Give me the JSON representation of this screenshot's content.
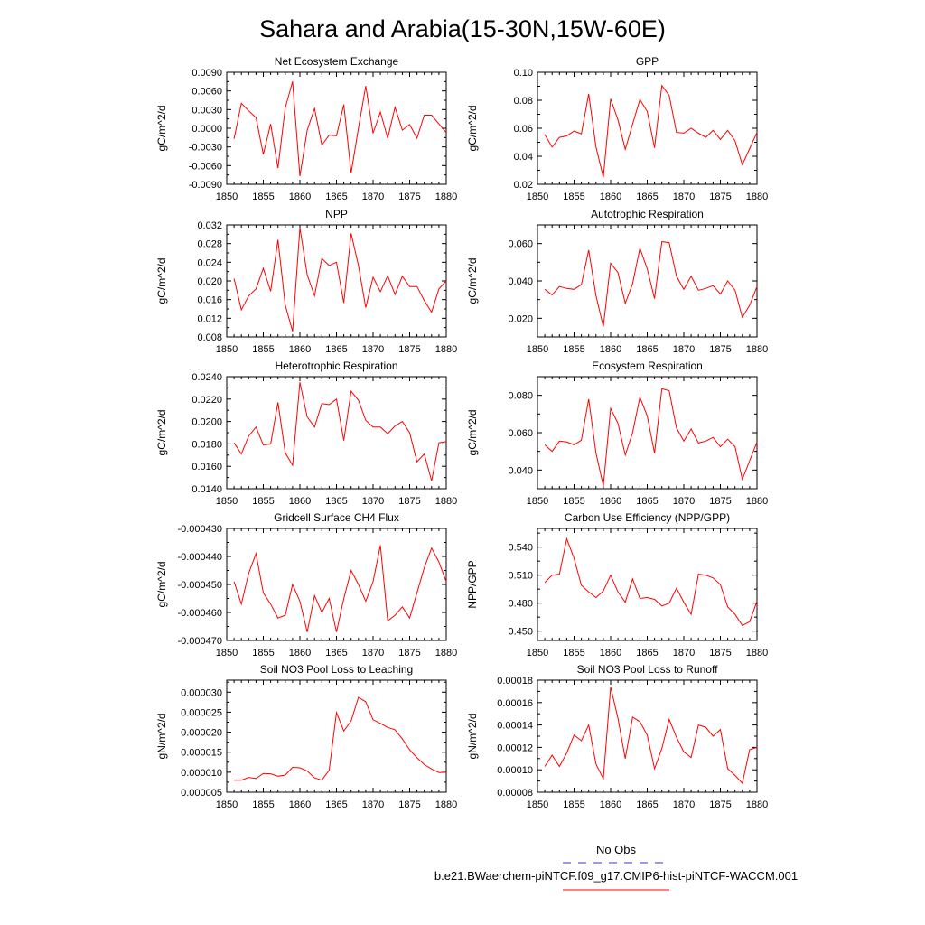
{
  "page_title": "Sahara and Arabia(15-30N,15W-60E)",
  "legend": {
    "obs_label": "No Obs",
    "obs_color": "#3333cc",
    "model_label": "b.e21.BWaerchem-piNTCF.f09_g17.CMIP6-hist-piNTCF-WACCM.001",
    "model_color": "#ff0000"
  },
  "chart_data": [
    {
      "type": "line",
      "title": "Net Ecosystem Exchange",
      "ylabel": "gC/m^2/d",
      "xlim": [
        1850,
        1880
      ],
      "ylim": [
        -0.009,
        0.009
      ],
      "xticks": [
        1850,
        1855,
        1860,
        1865,
        1870,
        1875,
        1880
      ],
      "yticks": [
        "-0.0090",
        "-0.0060",
        "-0.0030",
        "0.0000",
        "0.0030",
        "0.0060",
        "0.0090"
      ],
      "x": [
        1851,
        1852,
        1853,
        1854,
        1855,
        1856,
        1857,
        1858,
        1859,
        1860,
        1861,
        1862,
        1863,
        1864,
        1865,
        1866,
        1867,
        1868,
        1869,
        1870,
        1871,
        1872,
        1873,
        1874,
        1875,
        1876,
        1877,
        1878,
        1879,
        1880
      ],
      "series": [
        {
          "values": [
            -0.0017,
            0.004,
            0.0028,
            0.0017,
            -0.0042,
            0.0007,
            -0.0064,
            0.0033,
            0.0075,
            -0.0077,
            -0.0003,
            0.0032,
            -0.0027,
            -0.0011,
            -0.0012,
            0.0038,
            -0.0072,
            0.0,
            0.0068,
            -0.0008,
            0.0026,
            -0.0016,
            0.0034,
            -0.0003,
            0.0006,
            -0.0016,
            0.0021,
            0.0021,
            0.0007,
            -0.0007
          ]
        }
      ]
    },
    {
      "type": "line",
      "title": "GPP",
      "ylabel": "gC/m^2/d",
      "xlim": [
        1850,
        1880
      ],
      "ylim": [
        0.02,
        0.1
      ],
      "xticks": [
        1850,
        1855,
        1860,
        1865,
        1870,
        1875,
        1880
      ],
      "yticks": [
        "0.02",
        "0.04",
        "0.06",
        "0.08",
        "0.10"
      ],
      "x": [
        1851,
        1852,
        1853,
        1854,
        1855,
        1856,
        1857,
        1858,
        1859,
        1860,
        1861,
        1862,
        1863,
        1864,
        1865,
        1866,
        1867,
        1868,
        1869,
        1870,
        1871,
        1872,
        1873,
        1874,
        1875,
        1876,
        1877,
        1878,
        1879,
        1880
      ],
      "series": [
        {
          "values": [
            0.0555,
            0.0465,
            0.0535,
            0.0545,
            0.058,
            0.056,
            0.0845,
            0.0465,
            0.025,
            0.081,
            0.066,
            0.045,
            0.063,
            0.0805,
            0.072,
            0.046,
            0.0905,
            0.0835,
            0.057,
            0.0565,
            0.06,
            0.0565,
            0.0535,
            0.0585,
            0.052,
            0.0585,
            0.051,
            0.034,
            0.0455,
            0.057
          ]
        }
      ]
    },
    {
      "type": "line",
      "title": "NPP",
      "ylabel": "gC/m^2/d",
      "xlim": [
        1850,
        1880
      ],
      "ylim": [
        0.008,
        0.032
      ],
      "xticks": [
        1850,
        1855,
        1860,
        1865,
        1870,
        1875,
        1880
      ],
      "yticks": [
        "0.008",
        "0.012",
        "0.016",
        "0.020",
        "0.024",
        "0.028",
        "0.032"
      ],
      "x": [
        1851,
        1852,
        1853,
        1854,
        1855,
        1856,
        1857,
        1858,
        1859,
        1860,
        1861,
        1862,
        1863,
        1864,
        1865,
        1866,
        1867,
        1868,
        1869,
        1870,
        1871,
        1872,
        1873,
        1874,
        1875,
        1876,
        1877,
        1878,
        1879,
        1880
      ],
      "series": [
        {
          "values": [
            0.0205,
            0.0138,
            0.0168,
            0.0183,
            0.0227,
            0.0178,
            0.0288,
            0.0148,
            0.0092,
            0.0314,
            0.0213,
            0.0168,
            0.0248,
            0.0233,
            0.024,
            0.0153,
            0.0302,
            0.0233,
            0.0143,
            0.0208,
            0.0177,
            0.0211,
            0.0171,
            0.021,
            0.0188,
            0.0188,
            0.0158,
            0.0133,
            0.0183,
            0.02
          ]
        }
      ]
    },
    {
      "type": "line",
      "title": "Autotrophic Respiration",
      "ylabel": "gC/m^2/d",
      "xlim": [
        1850,
        1880
      ],
      "ylim": [
        0.01,
        0.07
      ],
      "xticks": [
        1850,
        1855,
        1860,
        1865,
        1870,
        1875,
        1880
      ],
      "yticks": [
        "0.020",
        "0.040",
        "0.060"
      ],
      "x": [
        1851,
        1852,
        1853,
        1854,
        1855,
        1856,
        1857,
        1858,
        1859,
        1860,
        1861,
        1862,
        1863,
        1864,
        1865,
        1866,
        1867,
        1868,
        1869,
        1870,
        1871,
        1872,
        1873,
        1874,
        1875,
        1876,
        1877,
        1878,
        1879,
        1880
      ],
      "series": [
        {
          "values": [
            0.0355,
            0.0325,
            0.037,
            0.036,
            0.0355,
            0.038,
            0.0565,
            0.032,
            0.0155,
            0.0495,
            0.0445,
            0.028,
            0.0385,
            0.0575,
            0.0465,
            0.0305,
            0.061,
            0.0605,
            0.0425,
            0.0355,
            0.0425,
            0.035,
            0.036,
            0.0375,
            0.033,
            0.04,
            0.035,
            0.0205,
            0.027,
            0.037
          ]
        }
      ]
    },
    {
      "type": "line",
      "title": "Heterotrophic Respiration",
      "ylabel": "gC/m^2/d",
      "xlim": [
        1850,
        1880
      ],
      "ylim": [
        0.014,
        0.024
      ],
      "xticks": [
        1850,
        1855,
        1860,
        1865,
        1870,
        1875,
        1880
      ],
      "yticks": [
        "0.0140",
        "0.0160",
        "0.0180",
        "0.0200",
        "0.0220",
        "0.0240"
      ],
      "x": [
        1851,
        1852,
        1853,
        1854,
        1855,
        1856,
        1857,
        1858,
        1859,
        1860,
        1861,
        1862,
        1863,
        1864,
        1865,
        1866,
        1867,
        1868,
        1869,
        1870,
        1871,
        1872,
        1873,
        1874,
        1875,
        1876,
        1877,
        1878,
        1879,
        1880
      ],
      "series": [
        {
          "values": [
            0.0181,
            0.0171,
            0.0187,
            0.0195,
            0.0179,
            0.018,
            0.0217,
            0.0172,
            0.0161,
            0.0235,
            0.0204,
            0.0195,
            0.0216,
            0.0215,
            0.022,
            0.0183,
            0.0227,
            0.0219,
            0.0201,
            0.0195,
            0.0195,
            0.0189,
            0.0196,
            0.02,
            0.019,
            0.0164,
            0.0171,
            0.0147,
            0.0181,
            0.0182
          ]
        }
      ]
    },
    {
      "type": "line",
      "title": "Ecosystem Respiration",
      "ylabel": "gC/m^2/d",
      "xlim": [
        1850,
        1880
      ],
      "ylim": [
        0.03,
        0.09
      ],
      "xticks": [
        1850,
        1855,
        1860,
        1865,
        1870,
        1875,
        1880
      ],
      "yticks": [
        "0.040",
        "0.060",
        "0.080"
      ],
      "x": [
        1851,
        1852,
        1853,
        1854,
        1855,
        1856,
        1857,
        1858,
        1859,
        1860,
        1861,
        1862,
        1863,
        1864,
        1865,
        1866,
        1867,
        1868,
        1869,
        1870,
        1871,
        1872,
        1873,
        1874,
        1875,
        1876,
        1877,
        1878,
        1879,
        1880
      ],
      "series": [
        {
          "values": [
            0.0535,
            0.05,
            0.0555,
            0.055,
            0.0535,
            0.056,
            0.078,
            0.049,
            0.0315,
            0.073,
            0.065,
            0.048,
            0.06,
            0.079,
            0.069,
            0.049,
            0.0835,
            0.0825,
            0.0625,
            0.0555,
            0.062,
            0.0545,
            0.0555,
            0.0575,
            0.0525,
            0.0565,
            0.0525,
            0.035,
            0.045,
            0.055
          ]
        }
      ]
    },
    {
      "type": "line",
      "title": "Gridcell Surface CH4 Flux",
      "ylabel": "gC/m^2/d",
      "xlim": [
        1850,
        1880
      ],
      "ylim": [
        -0.00047,
        -0.00043
      ],
      "xticks": [
        1850,
        1855,
        1860,
        1865,
        1870,
        1875,
        1880
      ],
      "yticks": [
        "-0.000470",
        "-0.000460",
        "-0.000450",
        "-0.000440",
        "-0.000430"
      ],
      "x": [
        1851,
        1852,
        1853,
        1854,
        1855,
        1856,
        1857,
        1858,
        1859,
        1860,
        1861,
        1862,
        1863,
        1864,
        1865,
        1866,
        1867,
        1868,
        1869,
        1870,
        1871,
        1872,
        1873,
        1874,
        1875,
        1876,
        1877,
        1878,
        1879,
        1880
      ],
      "series": [
        {
          "values": [
            -0.000449,
            -0.000457,
            -0.000446,
            -0.000439,
            -0.000453,
            -0.000457,
            -0.000462,
            -0.000461,
            -0.00045,
            -0.000456,
            -0.000467,
            -0.000454,
            -0.00046,
            -0.000455,
            -0.000467,
            -0.000455,
            -0.000445,
            -0.00045,
            -0.000456,
            -0.000449,
            -0.000436,
            -0.000463,
            -0.000461,
            -0.000458,
            -0.000462,
            -0.000453,
            -0.000444,
            -0.000437,
            -0.000442,
            -0.000449
          ]
        }
      ]
    },
    {
      "type": "line",
      "title": "Carbon Use Efficiency (NPP/GPP)",
      "ylabel": "NPP/GPP",
      "xlim": [
        1850,
        1880
      ],
      "ylim": [
        0.44,
        0.56
      ],
      "xticks": [
        1850,
        1855,
        1860,
        1865,
        1870,
        1875,
        1880
      ],
      "yticks": [
        "0.450",
        "0.480",
        "0.510",
        "0.540"
      ],
      "x": [
        1851,
        1852,
        1853,
        1854,
        1855,
        1856,
        1857,
        1858,
        1859,
        1860,
        1861,
        1862,
        1863,
        1864,
        1865,
        1866,
        1867,
        1868,
        1869,
        1870,
        1871,
        1872,
        1873,
        1874,
        1875,
        1876,
        1877,
        1878,
        1879,
        1880
      ],
      "series": [
        {
          "values": [
            0.502,
            0.51,
            0.511,
            0.549,
            0.528,
            0.499,
            0.492,
            0.486,
            0.493,
            0.51,
            0.492,
            0.481,
            0.506,
            0.485,
            0.486,
            0.484,
            0.477,
            0.48,
            0.496,
            0.481,
            0.468,
            0.511,
            0.51,
            0.507,
            0.5,
            0.476,
            0.468,
            0.456,
            0.46,
            0.482
          ]
        }
      ]
    },
    {
      "type": "line",
      "title": "Soil NO3 Pool Loss to Leaching",
      "ylabel": "gN/m^2/d",
      "xlim": [
        1850,
        1880
      ],
      "ylim": [
        5e-06,
        3.3e-05
      ],
      "xticks": [
        1850,
        1855,
        1860,
        1865,
        1870,
        1875,
        1880
      ],
      "yticks": [
        "0.000005",
        "0.000010",
        "0.000015",
        "0.000020",
        "0.000025",
        "0.000030"
      ],
      "x": [
        1851,
        1852,
        1853,
        1854,
        1855,
        1856,
        1857,
        1858,
        1859,
        1860,
        1861,
        1862,
        1863,
        1864,
        1865,
        1866,
        1867,
        1868,
        1869,
        1870,
        1871,
        1872,
        1873,
        1874,
        1875,
        1876,
        1877,
        1878,
        1879,
        1880
      ],
      "series": [
        {
          "values": [
            8e-06,
            8e-06,
            8.7e-06,
            8.4e-06,
            9.7e-06,
            9.6e-06,
            9e-06,
            9.3e-06,
            1.12e-05,
            1.11e-05,
            1.03e-05,
            8.6e-06,
            8e-06,
            1.05e-05,
            2.49e-05,
            2.03e-05,
            2.28e-05,
            2.87e-05,
            2.76e-05,
            2.31e-05,
            2.22e-05,
            2.12e-05,
            2.06e-05,
            1.83e-05,
            1.56e-05,
            1.36e-05,
            1.19e-05,
            1.08e-05,
            9.9e-06,
            1e-05
          ]
        }
      ]
    },
    {
      "type": "line",
      "title": "Soil NO3 Pool Loss to Runoff",
      "ylabel": "gN/m^2/d",
      "xlim": [
        1850,
        1880
      ],
      "ylim": [
        8e-05,
        0.00018
      ],
      "xticks": [
        1850,
        1855,
        1860,
        1865,
        1870,
        1875,
        1880
      ],
      "yticks": [
        "0.00008",
        "0.00010",
        "0.00012",
        "0.00014",
        "0.00016",
        "0.00018"
      ],
      "x": [
        1851,
        1852,
        1853,
        1854,
        1855,
        1856,
        1857,
        1858,
        1859,
        1860,
        1861,
        1862,
        1863,
        1864,
        1865,
        1866,
        1867,
        1868,
        1869,
        1870,
        1871,
        1872,
        1873,
        1874,
        1875,
        1876,
        1877,
        1878,
        1879,
        1880
      ],
      "series": [
        {
          "values": [
            0.000103,
            0.000113,
            0.000103,
            0.000115,
            0.000131,
            0.000126,
            0.00014,
            0.000105,
            9.2e-05,
            0.000174,
            0.000146,
            0.00011,
            0.000147,
            0.000143,
            0.000131,
            0.000101,
            0.000119,
            0.000145,
            0.000129,
            0.000116,
            0.000111,
            0.00014,
            0.000138,
            0.00013,
            0.000136,
            0.000101,
            9.5e-05,
            8.8e-05,
            0.000118,
            0.00012
          ]
        }
      ]
    }
  ]
}
